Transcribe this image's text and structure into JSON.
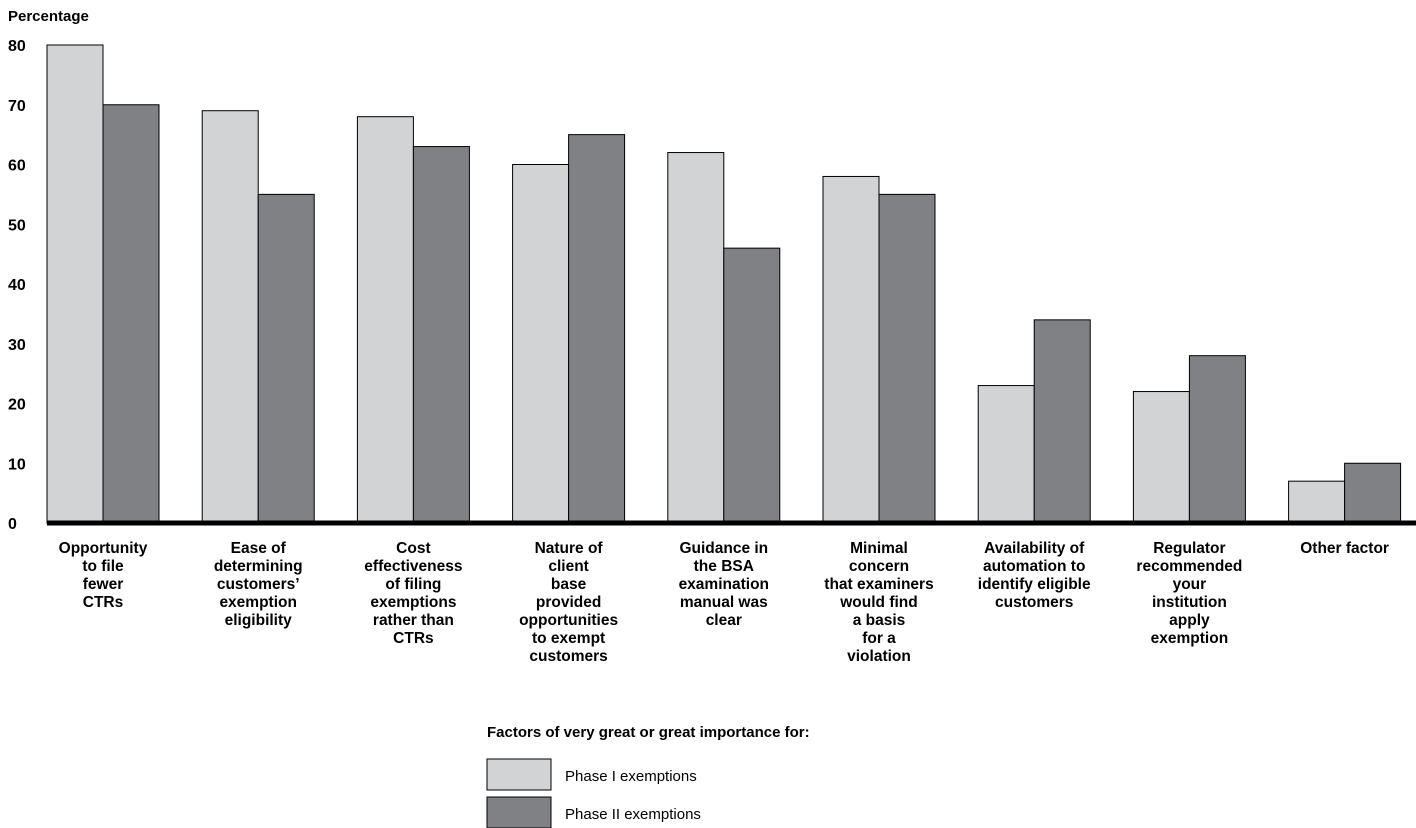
{
  "chart_data": {
    "type": "bar",
    "ylabel": "Percentage",
    "ylim": [
      0,
      80
    ],
    "yticks": [
      0,
      10,
      20,
      30,
      40,
      50,
      60,
      70,
      80
    ],
    "grid": false,
    "categories": [
      [
        "Opportunity",
        "to file",
        "fewer",
        "CTRs"
      ],
      [
        "Ease of",
        "determining",
        "customers’",
        "exemption",
        "eligibility"
      ],
      [
        "Cost",
        "effectiveness",
        "of filing",
        "exemptions",
        "rather than",
        "CTRs"
      ],
      [
        "Nature of",
        "client",
        "base",
        "provided",
        "opportunities",
        "to exempt",
        "customers"
      ],
      [
        "Guidance in",
        "the BSA",
        "examination",
        "manual was",
        "clear"
      ],
      [
        "Minimal",
        "concern",
        "that examiners",
        "would find",
        "a basis",
        "for a",
        "violation"
      ],
      [
        "Availability of",
        "automation to",
        "identify eligible",
        "customers"
      ],
      [
        "Regulator",
        "recommended",
        "your",
        "institution",
        "apply",
        "exemption"
      ],
      [
        "Other factor"
      ]
    ],
    "series": [
      {
        "name": "Phase I exemptions",
        "color": "#d2d3d5",
        "values": [
          80,
          69,
          68,
          60,
          62,
          58,
          23,
          22,
          7
        ]
      },
      {
        "name": "Phase II exemptions",
        "color": "#808184",
        "values": [
          70,
          55,
          63,
          65,
          46,
          55,
          34,
          28,
          10
        ]
      }
    ],
    "legend": {
      "title": "Factors of very great or great importance for:",
      "placement": "bottom-center"
    }
  }
}
